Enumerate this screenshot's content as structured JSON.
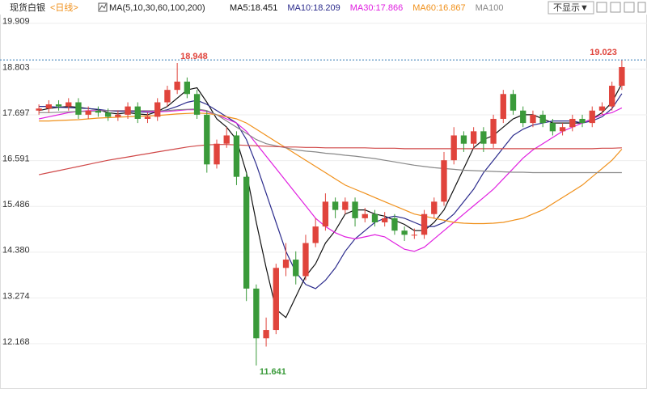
{
  "chart_data": {
    "type": "candlestick",
    "title": "现货白银",
    "period": "<日线>",
    "ma_label": "MA(5,10,30,60,100,200)",
    "hide_button": "不显示▼",
    "ylim": [
      11.29,
      20.12
    ],
    "yticks": [
      {
        "value": 19.909,
        "label": "19.909"
      },
      {
        "value": 18.803,
        "label": "18.803"
      },
      {
        "value": 17.697,
        "label": "17.697"
      },
      {
        "value": 16.591,
        "label": "16.591"
      },
      {
        "value": 15.486,
        "label": "15.486"
      },
      {
        "value": 14.38,
        "label": "14.380"
      },
      {
        "value": 13.274,
        "label": "13.274"
      },
      {
        "value": 12.168,
        "label": "12.168"
      }
    ],
    "grid": true,
    "up_color": "#e0443c",
    "down_color": "#3a9a3a",
    "candles": {
      "open": [
        17.8,
        17.85,
        17.95,
        17.9,
        18.0,
        17.7,
        17.8,
        17.75,
        17.65,
        17.7,
        17.9,
        17.6,
        17.65,
        18.0,
        18.3,
        18.5,
        18.2,
        17.7,
        16.5,
        17.0,
        17.2,
        16.2,
        13.5,
        12.3,
        12.5,
        14.0,
        14.2,
        13.8,
        14.6,
        15.0,
        15.6,
        15.4,
        15.6,
        15.2,
        15.3,
        15.1,
        15.2,
        14.9,
        14.8,
        14.8,
        15.3,
        15.6,
        16.6,
        17.2,
        17.0,
        17.3,
        17.0,
        17.6,
        18.2,
        17.8,
        17.5,
        17.7,
        17.5,
        17.3,
        17.4,
        17.6,
        17.5,
        17.8,
        17.9,
        18.4
      ],
      "high": [
        17.95,
        18.05,
        18.05,
        18.1,
        18.1,
        17.9,
        17.9,
        17.85,
        17.8,
        18.0,
        18.0,
        17.75,
        18.1,
        18.4,
        18.948,
        18.6,
        18.3,
        17.8,
        17.1,
        17.4,
        17.3,
        16.3,
        13.6,
        12.8,
        14.1,
        14.6,
        14.4,
        14.8,
        15.2,
        15.8,
        15.7,
        15.7,
        15.7,
        15.45,
        15.4,
        15.35,
        15.3,
        15.0,
        14.95,
        15.4,
        15.7,
        16.8,
        17.4,
        17.3,
        17.4,
        17.4,
        17.7,
        18.3,
        18.3,
        17.9,
        17.8,
        17.8,
        17.6,
        17.5,
        17.7,
        17.7,
        17.9,
        18.0,
        18.5,
        19.023
      ],
      "low": [
        17.7,
        17.75,
        17.8,
        17.8,
        17.6,
        17.6,
        17.65,
        17.55,
        17.55,
        17.6,
        17.5,
        17.5,
        17.55,
        17.9,
        18.2,
        18.1,
        17.6,
        16.3,
        16.4,
        16.9,
        16.0,
        13.2,
        11.641,
        12.1,
        12.4,
        13.8,
        13.6,
        13.7,
        14.5,
        14.9,
        15.2,
        15.3,
        15.0,
        15.1,
        15.0,
        15.0,
        14.8,
        14.65,
        14.7,
        14.7,
        15.2,
        15.5,
        16.5,
        16.8,
        16.9,
        16.8,
        16.9,
        17.5,
        17.7,
        17.4,
        17.4,
        17.4,
        17.2,
        17.2,
        17.3,
        17.4,
        17.4,
        17.7,
        17.8,
        18.3
      ],
      "close": [
        17.85,
        17.95,
        17.9,
        18.0,
        17.7,
        17.8,
        17.75,
        17.65,
        17.7,
        17.9,
        17.6,
        17.65,
        18.0,
        18.3,
        18.5,
        18.2,
        17.7,
        16.5,
        17.0,
        17.2,
        16.2,
        13.5,
        12.3,
        12.5,
        14.0,
        14.2,
        13.8,
        14.6,
        15.0,
        15.6,
        15.4,
        15.6,
        15.2,
        15.3,
        15.1,
        15.2,
        14.9,
        14.8,
        14.8,
        15.3,
        15.6,
        16.6,
        17.2,
        17.0,
        17.3,
        17.0,
        17.6,
        18.2,
        17.8,
        17.5,
        17.7,
        17.5,
        17.3,
        17.4,
        17.6,
        17.5,
        17.8,
        17.9,
        18.4,
        18.85
      ]
    },
    "series": [
      {
        "name": "MA5:18.451",
        "color": "#111111",
        "values": [
          17.8,
          17.85,
          17.88,
          17.9,
          17.88,
          17.85,
          17.82,
          17.75,
          17.72,
          17.75,
          17.72,
          17.7,
          17.78,
          17.9,
          18.1,
          18.3,
          18.35,
          18.0,
          17.6,
          17.4,
          17.1,
          16.3,
          15.1,
          14.0,
          13.0,
          12.8,
          13.3,
          13.8,
          14.1,
          14.6,
          14.9,
          15.3,
          15.4,
          15.4,
          15.3,
          15.25,
          15.15,
          15.05,
          14.9,
          14.9,
          15.1,
          15.4,
          15.9,
          16.4,
          16.9,
          17.1,
          17.2,
          17.4,
          17.6,
          17.7,
          17.7,
          17.6,
          17.5,
          17.5,
          17.5,
          17.5,
          17.6,
          17.75,
          18.0,
          18.451
        ]
      },
      {
        "name": "MA10:18.209",
        "color": "#2b2b8c",
        "values": [
          17.9,
          17.9,
          17.88,
          17.87,
          17.86,
          17.85,
          17.83,
          17.8,
          17.78,
          17.78,
          17.77,
          17.76,
          17.77,
          17.82,
          17.9,
          18.0,
          18.05,
          17.95,
          17.8,
          17.65,
          17.5,
          17.1,
          16.5,
          15.8,
          15.1,
          14.4,
          13.9,
          13.6,
          13.5,
          13.7,
          14.0,
          14.4,
          14.7,
          14.9,
          15.1,
          15.2,
          15.25,
          15.2,
          15.1,
          15.0,
          15.0,
          15.1,
          15.3,
          15.6,
          15.9,
          16.3,
          16.6,
          16.9,
          17.2,
          17.35,
          17.45,
          17.5,
          17.55,
          17.55,
          17.55,
          17.5,
          17.55,
          17.65,
          17.85,
          18.209
        ]
      },
      {
        "name": "MA30:17.866",
        "color": "#e020e0",
        "values": [
          17.6,
          17.65,
          17.7,
          17.75,
          17.78,
          17.8,
          17.8,
          17.8,
          17.8,
          17.8,
          17.8,
          17.78,
          17.77,
          17.78,
          17.8,
          17.82,
          17.82,
          17.78,
          17.7,
          17.6,
          17.5,
          17.3,
          17.0,
          16.7,
          16.4,
          16.1,
          15.8,
          15.5,
          15.2,
          15.0,
          14.85,
          14.75,
          14.7,
          14.75,
          14.8,
          14.75,
          14.6,
          14.45,
          14.4,
          14.5,
          14.7,
          14.9,
          15.1,
          15.3,
          15.5,
          15.7,
          15.9,
          16.15,
          16.4,
          16.65,
          16.85,
          17.0,
          17.15,
          17.3,
          17.4,
          17.5,
          17.6,
          17.7,
          17.75,
          17.866
        ]
      },
      {
        "name": "MA60:16.867",
        "color": "#f0901a",
        "values": [
          17.55,
          17.55,
          17.56,
          17.57,
          17.58,
          17.6,
          17.62,
          17.63,
          17.64,
          17.65,
          17.66,
          17.67,
          17.68,
          17.7,
          17.72,
          17.73,
          17.74,
          17.73,
          17.7,
          17.65,
          17.6,
          17.5,
          17.35,
          17.2,
          17.05,
          16.9,
          16.75,
          16.6,
          16.45,
          16.3,
          16.15,
          16.0,
          15.9,
          15.8,
          15.7,
          15.6,
          15.5,
          15.4,
          15.3,
          15.25,
          15.2,
          15.15,
          15.1,
          15.08,
          15.07,
          15.07,
          15.08,
          15.1,
          15.15,
          15.2,
          15.3,
          15.4,
          15.55,
          15.7,
          15.85,
          16.0,
          16.2,
          16.4,
          16.6,
          16.867
        ]
      },
      {
        "name": "MA100",
        "color": "#888888",
        "values": [
          17.75,
          17.75,
          17.76,
          17.77,
          17.78,
          17.78,
          17.79,
          17.8,
          17.8,
          17.8,
          17.8,
          17.8,
          17.8,
          17.8,
          17.82,
          17.83,
          17.84,
          17.8,
          17.7,
          17.55,
          17.4,
          17.25,
          17.1,
          17.0,
          16.95,
          16.9,
          16.85,
          16.82,
          16.8,
          16.77,
          16.75,
          16.72,
          16.7,
          16.67,
          16.64,
          16.6,
          16.56,
          16.52,
          16.48,
          16.45,
          16.42,
          16.4,
          16.38,
          16.36,
          16.35,
          16.34,
          16.33,
          16.32,
          16.31,
          16.31,
          16.3,
          16.3,
          16.3,
          16.3,
          16.3,
          16.3,
          16.3,
          16.3,
          16.3,
          16.3
        ]
      },
      {
        "color": "#d04848",
        "values": [
          16.25,
          16.3,
          16.35,
          16.4,
          16.45,
          16.5,
          16.55,
          16.6,
          16.64,
          16.68,
          16.72,
          16.76,
          16.8,
          16.84,
          16.88,
          16.92,
          16.95,
          16.97,
          16.98,
          16.98,
          16.97,
          16.96,
          16.95,
          16.94,
          16.93,
          16.92,
          16.92,
          16.91,
          16.91,
          16.9,
          16.9,
          16.9,
          16.9,
          16.9,
          16.89,
          16.89,
          16.89,
          16.88,
          16.88,
          16.88,
          16.88,
          16.88,
          16.88,
          16.88,
          16.88,
          16.88,
          16.88,
          16.88,
          16.88,
          16.88,
          16.88,
          16.88,
          16.88,
          16.88,
          16.88,
          16.88,
          16.88,
          16.89,
          16.89,
          16.9
        ]
      }
    ]
  }
}
